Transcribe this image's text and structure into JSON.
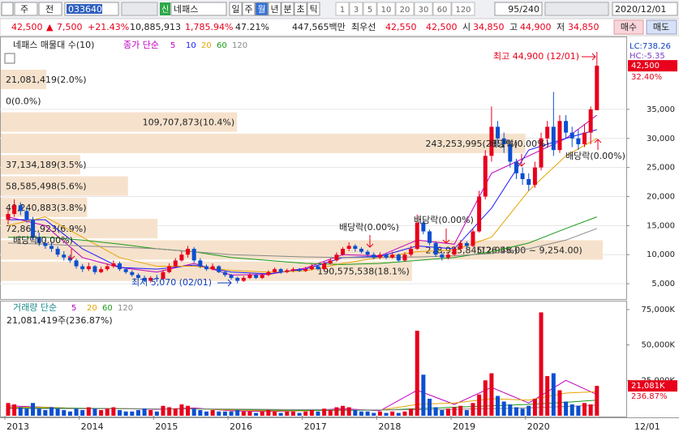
{
  "toolbar": {
    "market": "주",
    "prev": "전",
    "code": "033640",
    "badge": "신",
    "name": "네패스",
    "periods": [
      "일",
      "주",
      "월",
      "년",
      "분",
      "초",
      "틱"
    ],
    "selected_period_index": 2,
    "intervals": [
      "1",
      "3",
      "5",
      "10",
      "20",
      "30",
      "60",
      "120"
    ],
    "count": "95/240",
    "date": "2020/12/01"
  },
  "quote": {
    "price": "42,500",
    "arrow": "▲",
    "change": "7,500",
    "change_pct": "+21.43%",
    "volume": "10,885,913",
    "volume_ratio": "1,785.94%",
    "turnover": "47.21%",
    "amount": "447,565백만",
    "best_label": "최우선",
    "ask": "42,550",
    "bid": "42,500",
    "open_label": "시",
    "open": "34,850",
    "high_label": "고",
    "high": "44,900",
    "low_label": "저",
    "low": "34,850",
    "buy": "매수",
    "sell": "매도"
  },
  "chart_data": [
    {
      "type": "candlestick",
      "title": "네패스 매물대 수(10)",
      "indicator_label": "종가 단순",
      "up_color": "#e8001c",
      "down_color": "#0a4fd0",
      "ylim": [
        2500,
        47400
      ],
      "yticks": [
        {
          "value": 5000,
          "label": "5,000"
        },
        {
          "value": 10000,
          "label": "10,000"
        },
        {
          "value": 15000,
          "label": "15,000"
        },
        {
          "value": 20000,
          "label": "20,000"
        },
        {
          "value": 25000,
          "label": "25,000"
        },
        {
          "value": 30000,
          "label": "30,000"
        },
        {
          "value": 35000,
          "label": "35,000"
        }
      ],
      "grid": true,
      "xticks": [
        "2013",
        "2014",
        "2015",
        "2016",
        "2017",
        "2018",
        "2019",
        "2020"
      ],
      "x_end": "12/01",
      "candles": [
        [
          16000,
          17800,
          15200,
          17000
        ],
        [
          17000,
          19500,
          16500,
          18500
        ],
        [
          18500,
          19000,
          16800,
          17500
        ],
        [
          17500,
          18000,
          15500,
          16000
        ],
        [
          16000,
          16500,
          12500,
          13000
        ],
        [
          13000,
          13800,
          11500,
          12000
        ],
        [
          12000,
          12600,
          11000,
          11500
        ],
        [
          11500,
          12200,
          10500,
          11000
        ],
        [
          11000,
          11400,
          9600,
          10000
        ],
        [
          10000,
          10600,
          9000,
          9500
        ],
        [
          9500,
          10000,
          8600,
          9000
        ],
        [
          9000,
          9300,
          7600,
          8000
        ],
        [
          8000,
          8400,
          7000,
          7500
        ],
        [
          7500,
          8600,
          7200,
          8000
        ],
        [
          8000,
          8200,
          6600,
          7000
        ],
        [
          7000,
          7900,
          6800,
          7500
        ],
        [
          7500,
          8500,
          7200,
          8000
        ],
        [
          8000,
          9000,
          7700,
          8500
        ],
        [
          8500,
          8800,
          7200,
          7500
        ],
        [
          7500,
          7800,
          6700,
          7000
        ],
        [
          7000,
          7300,
          6200,
          6500
        ],
        [
          6500,
          6800,
          5800,
          6000
        ],
        [
          6000,
          6400,
          5300,
          5500
        ],
        [
          5500,
          6300,
          5200,
          6000
        ],
        [
          6000,
          6500,
          5300,
          5800
        ],
        [
          5800,
          7400,
          5600,
          7000
        ],
        [
          7000,
          8500,
          6800,
          8000
        ],
        [
          8000,
          9400,
          7700,
          9000
        ],
        [
          9000,
          10600,
          8800,
          10000
        ],
        [
          10000,
          11500,
          9500,
          11000
        ],
        [
          11000,
          11300,
          8600,
          9000
        ],
        [
          9000,
          9400,
          7700,
          8000
        ],
        [
          8000,
          8300,
          7200,
          7500
        ],
        [
          7500,
          8500,
          7300,
          8000
        ],
        [
          8000,
          8200,
          6800,
          7000
        ],
        [
          7000,
          7200,
          6200,
          6500
        ],
        [
          6500,
          6700,
          5700,
          6000
        ],
        [
          6000,
          6200,
          5070,
          5500
        ],
        [
          5500,
          6300,
          5300,
          6000
        ],
        [
          6000,
          6900,
          5800,
          6500
        ],
        [
          6500,
          6700,
          5800,
          6000
        ],
        [
          6000,
          6800,
          5800,
          6500
        ],
        [
          6500,
          7300,
          6300,
          7000
        ],
        [
          7000,
          7800,
          6800,
          7500
        ],
        [
          7500,
          7700,
          6700,
          7000
        ],
        [
          7000,
          7600,
          6800,
          7300
        ],
        [
          7300,
          7800,
          7000,
          7500
        ],
        [
          7500,
          7700,
          7000,
          7200
        ],
        [
          7200,
          7900,
          7000,
          7500
        ],
        [
          7500,
          8400,
          7300,
          8000
        ],
        [
          8000,
          8200,
          7300,
          7500
        ],
        [
          7500,
          8900,
          7400,
          8500
        ],
        [
          8500,
          9400,
          8300,
          9000
        ],
        [
          9000,
          10400,
          8800,
          10000
        ],
        [
          10000,
          11300,
          9800,
          11000
        ],
        [
          11000,
          12100,
          10600,
          11500
        ],
        [
          11500,
          11800,
          10500,
          11000
        ],
        [
          11000,
          11300,
          10200,
          10500
        ],
        [
          10500,
          10800,
          9700,
          10000
        ],
        [
          10000,
          10400,
          9200,
          9500
        ],
        [
          9500,
          10400,
          9200,
          10000
        ],
        [
          10000,
          10200,
          9200,
          9500
        ],
        [
          9500,
          10500,
          9300,
          10000
        ],
        [
          10000,
          10200,
          8700,
          9000
        ],
        [
          9000,
          10400,
          8800,
          10000
        ],
        [
          10000,
          11500,
          9700,
          11000
        ],
        [
          11000,
          16900,
          10800,
          15500
        ],
        [
          15500,
          16000,
          13500,
          14000
        ],
        [
          14000,
          14300,
          11600,
          12000
        ],
        [
          12000,
          12300,
          9600,
          10000
        ],
        [
          10000,
          10400,
          9000,
          9500
        ],
        [
          9500,
          10500,
          9200,
          10000
        ],
        [
          10000,
          11500,
          9800,
          11000
        ],
        [
          11000,
          12500,
          10700,
          12000
        ],
        [
          12000,
          12300,
          11000,
          11500
        ],
        [
          11500,
          14500,
          11300,
          14000
        ],
        [
          14000,
          21000,
          13800,
          20000
        ],
        [
          20000,
          28000,
          19500,
          27000
        ],
        [
          27000,
          35500,
          26000,
          32000
        ],
        [
          32000,
          33000,
          28500,
          30000
        ],
        [
          30000,
          31000,
          27500,
          29000
        ],
        [
          29000,
          29500,
          25000,
          26000
        ],
        [
          26000,
          26500,
          23000,
          24000
        ],
        [
          24000,
          25000,
          22000,
          23000
        ],
        [
          23000,
          24000,
          21000,
          22000
        ],
        [
          22000,
          26000,
          21500,
          25000
        ],
        [
          25000,
          31000,
          24500,
          30000
        ],
        [
          30000,
          33000,
          29000,
          32000
        ],
        [
          32000,
          38000,
          27000,
          28000
        ],
        [
          28000,
          34000,
          27500,
          33000
        ],
        [
          33000,
          34000,
          30000,
          31000
        ],
        [
          31000,
          32000,
          28500,
          30000
        ],
        [
          30000,
          31500,
          28000,
          29000
        ],
        [
          29000,
          32500,
          28500,
          31000
        ],
        [
          31000,
          35500,
          29000,
          35000
        ],
        [
          34850,
          44900,
          34850,
          42500
        ]
      ],
      "moving_averages": [
        {
          "name": "5",
          "color": "#c000c0",
          "x": [
            0,
            6,
            12,
            18,
            24,
            30,
            36,
            42,
            48,
            54,
            60,
            66,
            72,
            78,
            84,
            90,
            95
          ],
          "values": [
            16500,
            15000,
            9500,
            7800,
            7000,
            8500,
            6500,
            6600,
            7700,
            10000,
            9800,
            12500,
            11800,
            24000,
            27000,
            30000,
            34000
          ]
        },
        {
          "name": "10",
          "color": "#1a1aff",
          "x": [
            0,
            6,
            12,
            18,
            24,
            30,
            36,
            42,
            48,
            54,
            60,
            66,
            72,
            78,
            84,
            90,
            95
          ],
          "values": [
            16000,
            16000,
            11000,
            7800,
            7500,
            8200,
            7000,
            6700,
            7500,
            9500,
            9700,
            11500,
            11000,
            18000,
            28000,
            30000,
            31500
          ]
        },
        {
          "name": "20",
          "color": "#e8a400",
          "x": [
            0,
            6,
            12,
            18,
            24,
            30,
            36,
            42,
            48,
            54,
            60,
            66,
            72,
            78,
            84,
            90,
            95
          ],
          "values": [
            15000,
            16500,
            13000,
            9500,
            8000,
            8000,
            7300,
            7000,
            7200,
            8500,
            9500,
            10500,
            10800,
            13000,
            21000,
            27000,
            30000
          ]
        },
        {
          "name": "60",
          "color": "#1a9a1a",
          "x": [
            0,
            6,
            12,
            18,
            24,
            30,
            36,
            42,
            48,
            54,
            60,
            66,
            72,
            78,
            84,
            90,
            95
          ],
          "values": [
            13000,
            13000,
            12500,
            11800,
            11000,
            10500,
            9500,
            9000,
            8500,
            8300,
            8500,
            9000,
            9500,
            10500,
            12000,
            14500,
            16500
          ]
        },
        {
          "name": "120",
          "color": "#888888",
          "x": [
            0,
            6,
            12,
            18,
            24,
            30,
            36,
            42,
            48,
            54,
            60,
            66,
            72,
            78,
            84,
            90,
            95
          ],
          "values": [
            12000,
            11800,
            11500,
            11300,
            11000,
            10500,
            10000,
            9800,
            9600,
            9500,
            9500,
            9600,
            9800,
            10200,
            11000,
            12500,
            14500
          ]
        }
      ],
      "volume_profile": {
        "color": "#f6e2cc",
        "values": [
          2,
          0,
          10.4,
          23.1,
          3.5,
          5.6,
          3.8,
          6.9,
          26.5,
          18.1
        ],
        "value_labels": [
          "21,081,419(2.0%)",
          "0(0.0%)",
          "109,707,873(10.4%)",
          "243,253,995(23.1%)",
          "37,134,189(3.5%)",
          "58,585,498(5.6%)",
          "40,240,883(3.8%)",
          "72,861,923(6.9%)",
          "278,925,845(26.5%)",
          "190,575,538(18.1%)"
        ],
        "range_label": "(12,948.00 ~ 9,254.00)"
      },
      "annotations": {
        "high": "최고 44,900 (12/01)",
        "low": "최저 5,070 (02/01)",
        "dividend": [
          "배당락(0.00%)",
          "배당락(0.00%)",
          "배당락(0.00%)",
          "배당락(0.00%)",
          "배당락(0.00%)"
        ]
      },
      "lc": "LC:738.26",
      "hc": "HC:-5.35",
      "last_price": {
        "value": 42500,
        "label": "42,500"
      },
      "last_pct": "32.40%"
    },
    {
      "type": "bar",
      "title": "거래량 단순",
      "summary": "21,081,419주(236.87%)",
      "ylim": [
        0,
        80700
      ],
      "yticks": [
        {
          "value": 25000,
          "label": "25,000K"
        },
        {
          "value": 50000,
          "label": "50,000K"
        },
        {
          "value": 75000,
          "label": "75,000K"
        }
      ],
      "values": [
        9000,
        8000,
        6000,
        5000,
        9000,
        5000,
        4000,
        6000,
        5000,
        4000,
        3000,
        5000,
        4000,
        6000,
        5000,
        4000,
        5000,
        6000,
        4000,
        3000,
        3000,
        4000,
        5000,
        4000,
        3000,
        7000,
        6000,
        5000,
        8000,
        7000,
        5000,
        4000,
        3000,
        4000,
        3000,
        3000,
        3000,
        4000,
        3000,
        3000,
        2000,
        3000,
        4000,
        3000,
        2000,
        3000,
        3000,
        2000,
        3000,
        4000,
        3000,
        5000,
        4000,
        6000,
        7000,
        6000,
        4000,
        3000,
        3000,
        2000,
        3000,
        2000,
        3000,
        2000,
        3000,
        5000,
        60000,
        29000,
        12000,
        6000,
        4000,
        5000,
        6000,
        7000,
        4000,
        9000,
        15000,
        25000,
        30000,
        14000,
        10000,
        8000,
        6000,
        5000,
        7000,
        12000,
        73000,
        28000,
        30000,
        18000,
        10000,
        8000,
        7000,
        9000,
        8000,
        21081
      ],
      "moving_averages": [
        {
          "name": "5",
          "color": "#c000c0",
          "x": [
            0,
            6,
            12,
            18,
            24,
            30,
            36,
            42,
            48,
            54,
            60,
            66,
            72,
            78,
            84,
            90,
            95
          ],
          "values": [
            7000,
            6000,
            5000,
            5000,
            4500,
            5500,
            3500,
            3000,
            3500,
            5000,
            3500,
            18000,
            8000,
            20000,
            9000,
            25000,
            15000
          ]
        },
        {
          "name": "20",
          "color": "#e8a400",
          "x": [
            0,
            6,
            12,
            18,
            24,
            30,
            36,
            42,
            48,
            54,
            60,
            66,
            72,
            78,
            84,
            90,
            95
          ],
          "values": [
            6000,
            6000,
            5000,
            5000,
            4800,
            5000,
            4000,
            3500,
            3500,
            4000,
            4000,
            8000,
            9000,
            12000,
            11000,
            16000,
            17000
          ]
        },
        {
          "name": "60",
          "color": "#1a9a1a",
          "x": [
            0,
            6,
            12,
            18,
            24,
            30,
            36,
            42,
            48,
            54,
            60,
            66,
            72,
            78,
            84,
            90,
            95
          ],
          "values": [
            5500,
            5500,
            5300,
            5000,
            4800,
            4800,
            4500,
            4000,
            3800,
            3800,
            4000,
            5000,
            6000,
            7000,
            8000,
            9500,
            11000
          ]
        },
        {
          "name": "120",
          "color": "#888888",
          "x": [
            0,
            6,
            12,
            18,
            24,
            30,
            36,
            42,
            48,
            54,
            60,
            66,
            72,
            78,
            84,
            90,
            95
          ],
          "values": [
            5000,
            5000,
            5000,
            5000,
            4900,
            4800,
            4700,
            4500,
            4300,
            4200,
            4100,
            4300,
            4600,
            5000,
            5600,
            6500,
            7500
          ]
        }
      ],
      "last_value": {
        "value": 21081,
        "label": "21,081K"
      },
      "last_pct": "236.87%"
    }
  ]
}
